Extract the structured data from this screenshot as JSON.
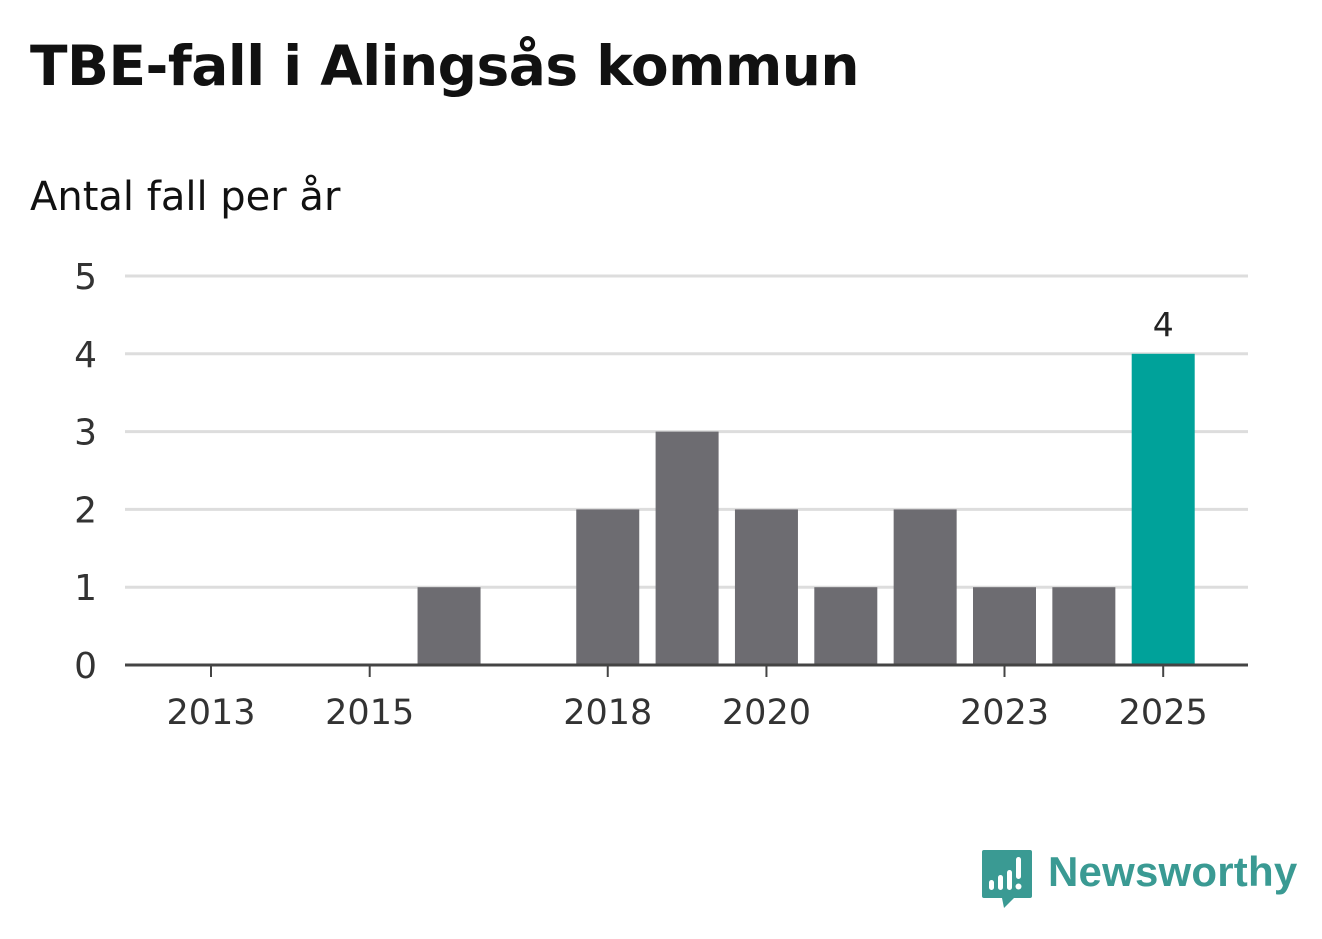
{
  "chart_data": {
    "type": "bar",
    "title": "TBE-fall i Alingsås kommun",
    "subtitle": "Antal fall per år",
    "categories": [
      "2013",
      "2014",
      "2015",
      "2016",
      "2017",
      "2018",
      "2019",
      "2020",
      "2021",
      "2022",
      "2023",
      "2024",
      "2025"
    ],
    "values": [
      0,
      0,
      0,
      1,
      0,
      2,
      3,
      2,
      1,
      2,
      1,
      1,
      4
    ],
    "x_tick_labels": [
      "2013",
      "2015",
      "2018",
      "2020",
      "2023",
      "2025"
    ],
    "ylim": [
      0,
      5
    ],
    "yticks": [
      "0",
      "1",
      "2",
      "3",
      "4",
      "5"
    ],
    "highlight": {
      "category": "2025",
      "label": "4"
    },
    "colors": {
      "bar": "#6d6c71",
      "highlight": "#00a29a",
      "grid": "#dddddd",
      "axis": "#444444"
    },
    "xlabel": "",
    "ylabel": ""
  },
  "branding": {
    "name": "Newsworthy",
    "color": "#3a9a93",
    "icon": "bar-chart-speech-bubble-icon"
  }
}
